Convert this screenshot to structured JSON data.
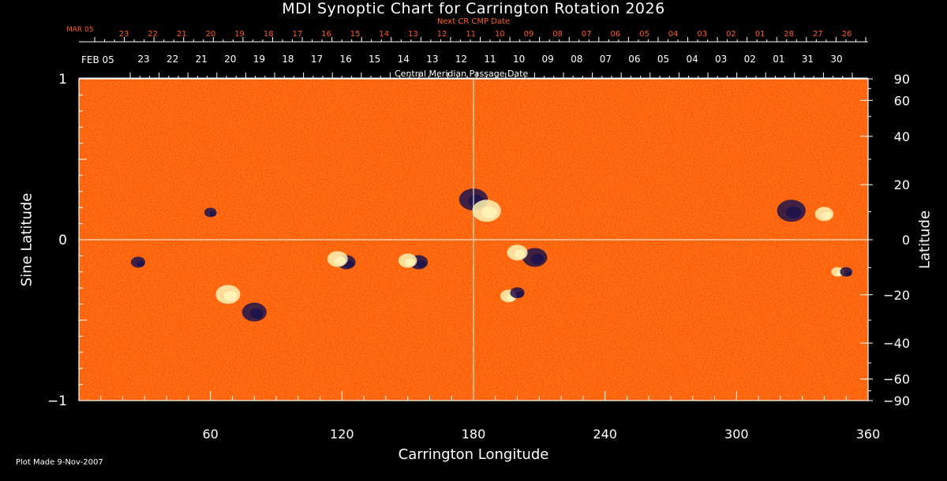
{
  "title": "MDI Synoptic Chart for Carrington Rotation 2026",
  "next_cr_label": "Next CR CMP Date",
  "cmp_label": "Central Meridian Passage Date",
  "top_left_label": "MAR 05",
  "second_left_label": "FEB 05",
  "plot_made": "Plot Made  9-Nov-2007",
  "colors": {
    "background": "#000000",
    "axis": "#ffffff",
    "next_cr": "#ff5a1e",
    "field_base": "#ff5a0a",
    "positive": "#fff2b4",
    "negative": "#20144a"
  },
  "chart_data": {
    "type": "heatmap",
    "title": "MDI Synoptic Chart for Carrington Rotation 2026",
    "xlabel": "Carrington Longitude",
    "ylabel_left": "Sine Latitude",
    "ylabel_right": "Latitude",
    "xlim": [
      0,
      360
    ],
    "ylim": [
      -1,
      1
    ],
    "x_ticks": [
      "60",
      "120",
      "180",
      "240",
      "300",
      "360"
    ],
    "y_ticks_left": [
      "1",
      "0",
      "−1"
    ],
    "y_ticks_right": [
      "90",
      "60",
      "40",
      "20",
      "0",
      "−20",
      "−40",
      "−60",
      "−90"
    ],
    "y_ticks_right_values": [
      90,
      60,
      40,
      20,
      0,
      -20,
      -40,
      -60,
      -90
    ],
    "next_cr_dates": [
      "23",
      "22",
      "21",
      "20",
      "19",
      "18",
      "17",
      "16",
      "15",
      "14",
      "13",
      "12",
      "11",
      "10",
      "09",
      "08",
      "07",
      "06",
      "05",
      "04",
      "03",
      "02",
      "01",
      "28",
      "27",
      "26"
    ],
    "cmp_dates": [
      "23",
      "22",
      "21",
      "20",
      "19",
      "18",
      "17",
      "16",
      "15",
      "14",
      "13",
      "12",
      "11",
      "10",
      "09",
      "08",
      "07",
      "06",
      "05",
      "04",
      "03",
      "02",
      "01",
      "31",
      "30"
    ],
    "active_regions": [
      {
        "lon": 180,
        "lat_sin": 0.25,
        "polarity": "negative",
        "size": 14
      },
      {
        "lon": 186,
        "lat_sin": 0.18,
        "polarity": "positive",
        "size": 14
      },
      {
        "lon": 122,
        "lat_sin": -0.14,
        "polarity": "negative",
        "size": 9
      },
      {
        "lon": 118,
        "lat_sin": -0.12,
        "polarity": "positive",
        "size": 10
      },
      {
        "lon": 155,
        "lat_sin": -0.14,
        "polarity": "negative",
        "size": 9
      },
      {
        "lon": 150,
        "lat_sin": -0.13,
        "polarity": "positive",
        "size": 9
      },
      {
        "lon": 208,
        "lat_sin": -0.11,
        "polarity": "negative",
        "size": 12
      },
      {
        "lon": 200,
        "lat_sin": -0.08,
        "polarity": "positive",
        "size": 10
      },
      {
        "lon": 196,
        "lat_sin": -0.35,
        "polarity": "positive",
        "size": 8
      },
      {
        "lon": 200,
        "lat_sin": -0.33,
        "polarity": "negative",
        "size": 7
      },
      {
        "lon": 325,
        "lat_sin": 0.18,
        "polarity": "negative",
        "size": 14
      },
      {
        "lon": 340,
        "lat_sin": 0.16,
        "polarity": "positive",
        "size": 9
      },
      {
        "lon": 27,
        "lat_sin": -0.14,
        "polarity": "negative",
        "size": 7
      },
      {
        "lon": 68,
        "lat_sin": -0.34,
        "polarity": "positive",
        "size": 12
      },
      {
        "lon": 80,
        "lat_sin": -0.45,
        "polarity": "negative",
        "size": 12
      },
      {
        "lon": 60,
        "lat_sin": 0.17,
        "polarity": "negative",
        "size": 6
      },
      {
        "lon": 346,
        "lat_sin": -0.2,
        "polarity": "positive",
        "size": 6
      },
      {
        "lon": 350,
        "lat_sin": -0.2,
        "polarity": "negative",
        "size": 6
      }
    ]
  }
}
